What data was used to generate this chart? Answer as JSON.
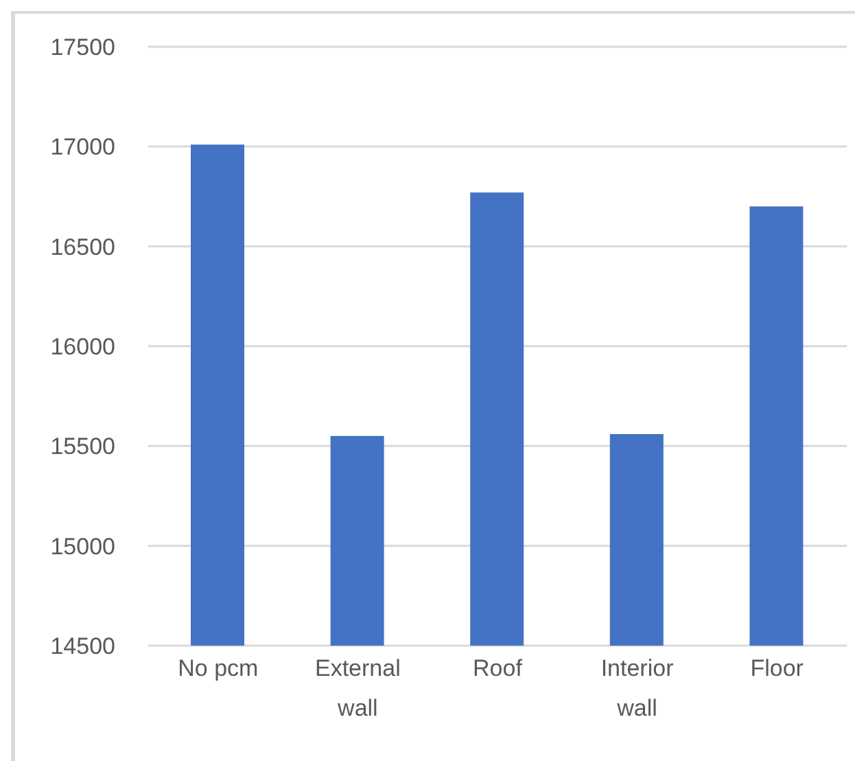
{
  "chart_data": {
    "type": "bar",
    "categories": [
      "No pcm",
      "External wall",
      "Roof",
      "Interior wall",
      "Floor"
    ],
    "values": [
      17010,
      15550,
      16770,
      15560,
      16700
    ],
    "color": "#4472c4",
    "ylim": [
      14500,
      17500
    ],
    "yticks": [
      14500,
      15000,
      15500,
      16000,
      16500,
      17000,
      17500
    ],
    "grid": "y",
    "legend": false
  }
}
